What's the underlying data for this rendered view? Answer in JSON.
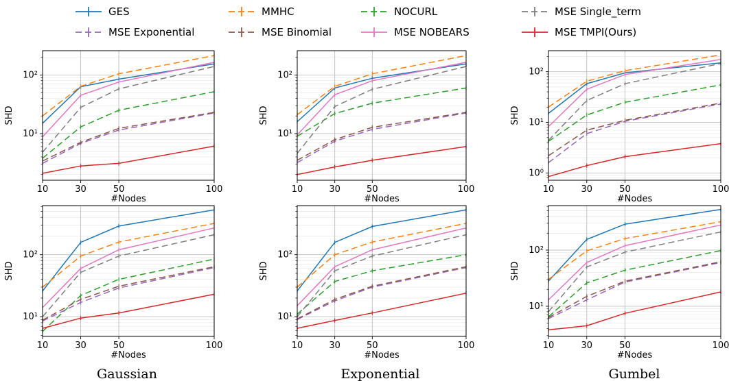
{
  "legend": [
    {
      "name": "GES",
      "color": "#1f77b4",
      "dash": "solid"
    },
    {
      "name": "MMHC",
      "color": "#ff7f0e",
      "dash": "dashed"
    },
    {
      "name": "NOCURL",
      "color": "#2ca02c",
      "dash": "dashed"
    },
    {
      "name": "MSE Single_term",
      "color": "#7f7f7f",
      "dash": "dashed"
    },
    {
      "name": "MSE Exponential",
      "color": "#9467bd",
      "dash": "dashed"
    },
    {
      "name": "MSE Binomial",
      "color": "#8c564b",
      "dash": "dashed"
    },
    {
      "name": "MSE NOBEARS",
      "color": "#e377c2",
      "dash": "solid"
    },
    {
      "name": "MSE TMPI(Ours)",
      "color": "#d62728",
      "dash": "solid"
    }
  ],
  "column_titles": [
    "Gaussian",
    "Exponential",
    "Gumbel"
  ],
  "chart_data": [
    {
      "type": "line",
      "scale_y": "log",
      "grid": true,
      "xlabel": "#Nodes",
      "ylabel": "SHD",
      "x": [
        10,
        30,
        50,
        100
      ],
      "xticks": [
        "10",
        "30",
        "50",
        "100"
      ],
      "yticks": [
        {
          "value": 10,
          "label": "10¹"
        },
        {
          "value": 100,
          "label": "10²"
        }
      ],
      "ylim": [
        1.6,
        260
      ],
      "series": [
        {
          "name": "GES",
          "values": [
            15,
            63,
            85,
            155
          ]
        },
        {
          "name": "MMHC",
          "values": [
            20,
            64,
            105,
            215
          ]
        },
        {
          "name": "NOCURL",
          "values": [
            3.8,
            13,
            25,
            52
          ]
        },
        {
          "name": "MSE Single_term",
          "values": [
            4.8,
            28,
            58,
            140
          ]
        },
        {
          "name": "MSE Exponential",
          "values": [
            3.1,
            6.8,
            11.5,
            22.5
          ]
        },
        {
          "name": "MSE Binomial",
          "values": [
            3.4,
            7.1,
            12.3,
            23
          ]
        },
        {
          "name": "MSE NOBEARS",
          "values": [
            8.8,
            45,
            76,
            165
          ]
        },
        {
          "name": "MSE TMPI(Ours)",
          "values": [
            2.1,
            2.8,
            3.1,
            6.1
          ]
        }
      ]
    },
    {
      "type": "line",
      "scale_y": "log",
      "grid": true,
      "xlabel": "#Nodes",
      "ylabel": "SHD",
      "x": [
        10,
        30,
        50,
        100
      ],
      "xticks": [
        "10",
        "30",
        "50",
        "100"
      ],
      "yticks": [
        {
          "value": 10,
          "label": "10¹"
        },
        {
          "value": 100,
          "label": "10²"
        }
      ],
      "ylim": [
        1.6,
        260
      ],
      "series": [
        {
          "name": "GES",
          "values": [
            16,
            60,
            88,
            155
          ]
        },
        {
          "name": "MMHC",
          "values": [
            21,
            64,
            105,
            215
          ]
        },
        {
          "name": "NOCURL",
          "values": [
            9,
            22,
            33,
            60
          ]
        },
        {
          "name": "MSE Single_term",
          "values": [
            4.6,
            29,
            57,
            140
          ]
        },
        {
          "name": "MSE Exponential",
          "values": [
            3.2,
            7.4,
            11.8,
            22.5
          ]
        },
        {
          "name": "MSE Binomial",
          "values": [
            3.5,
            7.9,
            12.8,
            23
          ]
        },
        {
          "name": "MSE NOBEARS",
          "values": [
            9.5,
            46,
            80,
            165
          ]
        },
        {
          "name": "MSE TMPI(Ours)",
          "values": [
            2.0,
            2.7,
            3.5,
            6.0
          ]
        }
      ]
    },
    {
      "type": "line",
      "scale_y": "log",
      "grid": true,
      "xlabel": "#Nodes",
      "ylabel": "SHD",
      "x": [
        10,
        30,
        50,
        100
      ],
      "xticks": [
        "10",
        "30",
        "50",
        "100"
      ],
      "yticks": [
        {
          "value": 1,
          "label": "10⁰"
        },
        {
          "value": 10,
          "label": "10¹"
        },
        {
          "value": 100,
          "label": "10²"
        }
      ],
      "ylim": [
        0.72,
        260
      ],
      "series": [
        {
          "name": "GES",
          "values": [
            15,
            58,
            95,
            150
          ]
        },
        {
          "name": "MMHC",
          "values": [
            20,
            65,
            105,
            215
          ]
        },
        {
          "name": "NOCURL",
          "values": [
            4.2,
            14,
            25,
            55
          ]
        },
        {
          "name": "MSE Single_term",
          "values": [
            4.4,
            27,
            58,
            145
          ]
        },
        {
          "name": "MSE Exponential",
          "values": [
            1.6,
            6.0,
            10.5,
            23
          ]
        },
        {
          "name": "MSE Binomial",
          "values": [
            2.2,
            7.0,
            11,
            24
          ]
        },
        {
          "name": "MSE NOBEARS",
          "values": [
            8.2,
            45,
            88,
            175
          ]
        },
        {
          "name": "MSE TMPI(Ours)",
          "values": [
            0.85,
            1.4,
            2.1,
            3.8
          ]
        }
      ]
    },
    {
      "type": "line",
      "scale_y": "log",
      "grid": true,
      "xlabel": "#Nodes",
      "ylabel": "SHD",
      "x": [
        10,
        30,
        50,
        100
      ],
      "xticks": [
        "10",
        "30",
        "50",
        "100"
      ],
      "yticks": [
        {
          "value": 10,
          "label": "10¹"
        },
        {
          "value": 100,
          "label": "10²"
        }
      ],
      "ylim": [
        4.8,
        620
      ],
      "series": [
        {
          "name": "GES",
          "values": [
            26,
            158,
            290,
            530
          ]
        },
        {
          "name": "MMHC",
          "values": [
            30,
            95,
            160,
            320
          ]
        },
        {
          "name": "NOCURL",
          "values": [
            5.8,
            22,
            40,
            85
          ]
        },
        {
          "name": "MSE Single_term",
          "values": [
            10,
            52,
            95,
            210
          ]
        },
        {
          "name": "MSE Exponential",
          "values": [
            8.5,
            17,
            29,
            62
          ]
        },
        {
          "name": "MSE Binomial",
          "values": [
            8.8,
            19,
            31,
            64
          ]
        },
        {
          "name": "MSE NOBEARS",
          "values": [
            14,
            60,
            120,
            270
          ]
        },
        {
          "name": "MSE TMPI(Ours)",
          "values": [
            6.5,
            9.5,
            11.5,
            23
          ]
        }
      ]
    },
    {
      "type": "line",
      "scale_y": "log",
      "grid": true,
      "xlabel": "#Nodes",
      "ylabel": "SHD",
      "x": [
        10,
        30,
        50,
        100
      ],
      "xticks": [
        "10",
        "30",
        "50",
        "100"
      ],
      "yticks": [
        {
          "value": 10,
          "label": "10¹"
        },
        {
          "value": 100,
          "label": "10²"
        }
      ],
      "ylim": [
        4.8,
        620
      ],
      "series": [
        {
          "name": "GES",
          "values": [
            26,
            158,
            285,
            530
          ]
        },
        {
          "name": "MMHC",
          "values": [
            30,
            100,
            160,
            320
          ]
        },
        {
          "name": "NOCURL",
          "values": [
            11,
            37,
            55,
            100
          ]
        },
        {
          "name": "MSE Single_term",
          "values": [
            10,
            55,
            95,
            210
          ]
        },
        {
          "name": "MSE Exponential",
          "values": [
            9,
            18,
            30,
            62
          ]
        },
        {
          "name": "MSE Binomial",
          "values": [
            9.2,
            19,
            31,
            64
          ]
        },
        {
          "name": "MSE NOBEARS",
          "values": [
            15,
            64,
            120,
            270
          ]
        },
        {
          "name": "MSE TMPI(Ours)",
          "values": [
            6.5,
            8.7,
            11.5,
            24
          ]
        }
      ]
    },
    {
      "type": "line",
      "scale_y": "log",
      "grid": true,
      "xlabel": "#Nodes",
      "ylabel": "SHD",
      "x": [
        10,
        30,
        50,
        100
      ],
      "xticks": [
        "10",
        "30",
        "50",
        "100"
      ],
      "yticks": [
        {
          "value": 10,
          "label": "10¹"
        },
        {
          "value": 100,
          "label": "10²"
        }
      ],
      "ylim": [
        2.9,
        620
      ],
      "series": [
        {
          "name": "GES",
          "values": [
            28,
            155,
            290,
            530
          ]
        },
        {
          "name": "MMHC",
          "values": [
            30,
            97,
            160,
            320
          ]
        },
        {
          "name": "NOCURL",
          "values": [
            6.5,
            26,
            44,
            98
          ]
        },
        {
          "name": "MSE Single_term",
          "values": [
            8,
            50,
            92,
            210
          ]
        },
        {
          "name": "MSE Exponential",
          "values": [
            6,
            13,
            27,
            60
          ]
        },
        {
          "name": "MSE Binomial",
          "values": [
            6.3,
            15,
            28,
            62
          ]
        },
        {
          "name": "MSE NOBEARS",
          "values": [
            13,
            60,
            120,
            280
          ]
        },
        {
          "name": "MSE TMPI(Ours)",
          "values": [
            3.8,
            4.5,
            7.5,
            18
          ]
        }
      ]
    }
  ]
}
